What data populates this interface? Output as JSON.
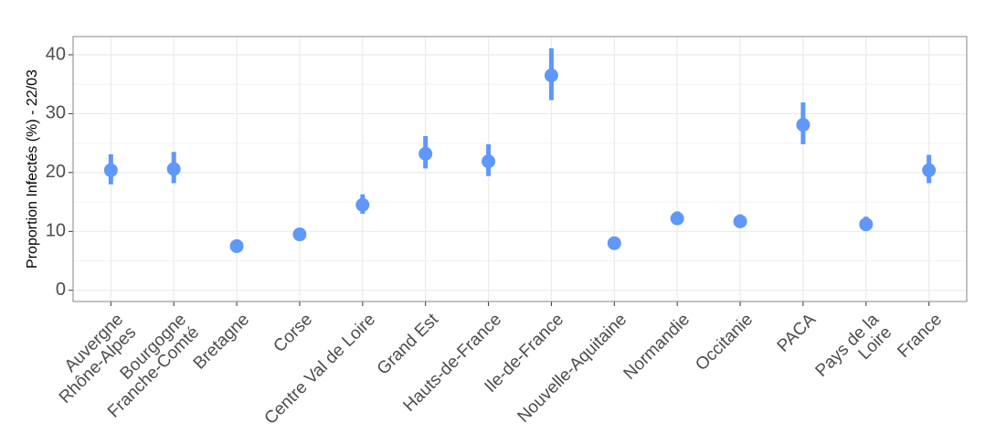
{
  "chart_data": {
    "type": "pointrange",
    "y_label": "Proportion Infectés (%) - 22/03",
    "categories": [
      "Auvergne\nRhône-Alpes",
      "Bourgogne\nFranche-Comté",
      "Bretagne",
      "Corse",
      "Centre Val de Loire",
      "Grand Est",
      "Hauts-de-France",
      "Ile-de-France",
      "Nouvelle-Aquitaine",
      "Normandie",
      "Occitanie",
      "PACA",
      "Pays de la Loire",
      "France"
    ],
    "values": [
      20.4,
      20.6,
      7.5,
      9.5,
      14.5,
      23.2,
      21.9,
      36.5,
      8.0,
      12.2,
      11.7,
      28.1,
      11.2,
      20.4
    ],
    "lower": [
      18.0,
      18.2,
      7.0,
      9.0,
      13.0,
      20.7,
      19.4,
      32.3,
      7.6,
      11.2,
      10.8,
      24.8,
      10.2,
      18.2
    ],
    "upper": [
      23.1,
      23.5,
      8.0,
      10.0,
      16.3,
      26.2,
      24.8,
      41.1,
      8.5,
      13.4,
      12.9,
      31.9,
      12.5,
      23.0
    ],
    "color": "#5f97fb",
    "ylim": [
      -1.9,
      43.1
    ],
    "yticks": [
      0,
      10,
      20,
      30,
      40
    ],
    "minor_yticks": [
      5,
      15,
      25,
      35
    ],
    "grid": true
  }
}
